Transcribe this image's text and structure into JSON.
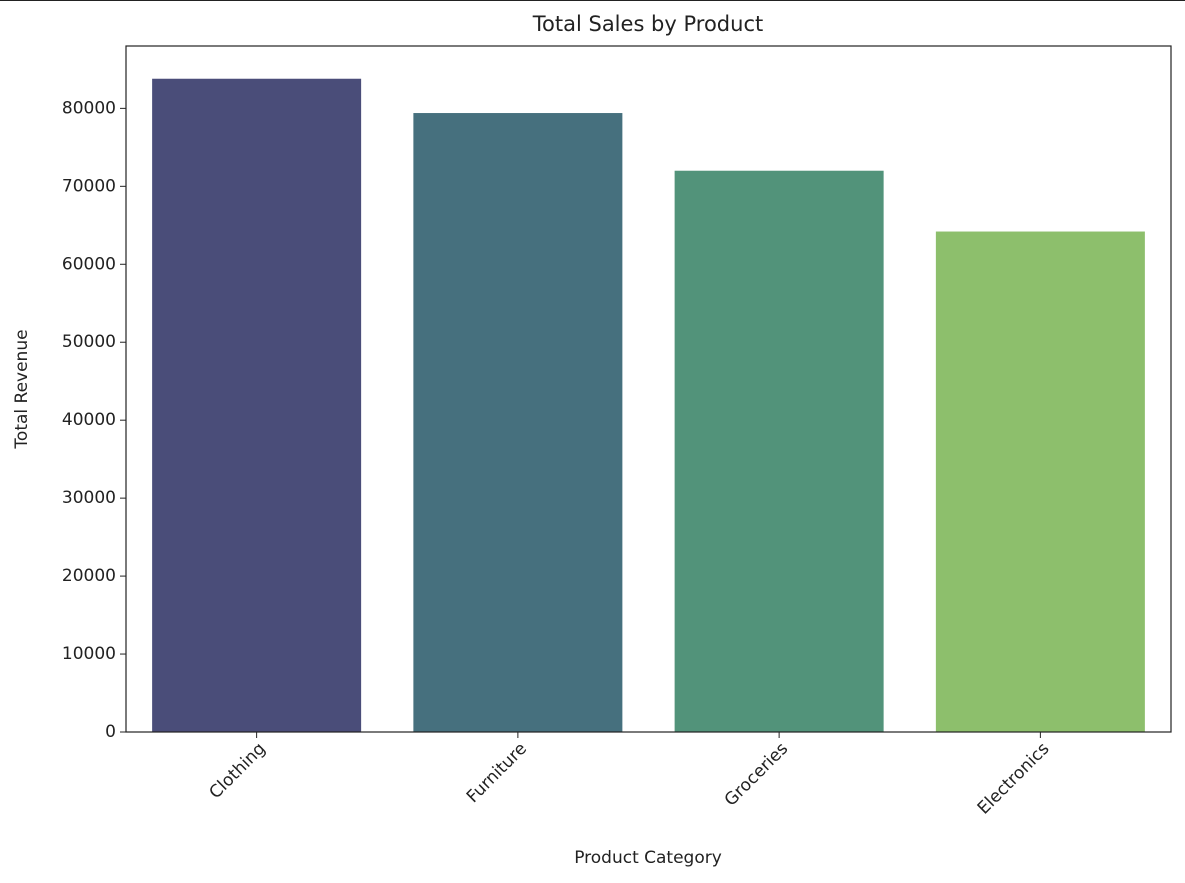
{
  "chart_data": {
    "type": "bar",
    "title": "Total Sales by Product",
    "x_label": "Product Category",
    "y_label": "Total Revenue",
    "categories": [
      "Clothing",
      "Furniture",
      "Groceries",
      "Electronics"
    ],
    "values": [
      83800,
      79400,
      72000,
      64200
    ],
    "colors": [
      "#4a4d79",
      "#46707e",
      "#52937a",
      "#8dbf6c"
    ],
    "ylim": [
      0,
      88000
    ],
    "yticks": [
      0,
      10000,
      20000,
      30000,
      40000,
      50000,
      60000,
      70000,
      80000
    ],
    "grid": false
  }
}
